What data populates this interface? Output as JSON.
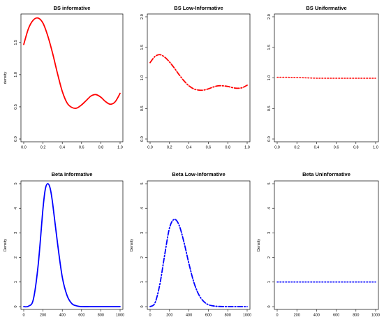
{
  "chart_data": [
    {
      "type": "line",
      "title": "BS informative",
      "xlabel": "",
      "ylabel": "density",
      "xlim": [
        0,
        1
      ],
      "ylim": [
        0,
        1.9
      ],
      "xticks": [
        "0.0",
        "0.2",
        "0.4",
        "0.6",
        "0.8",
        "1.0"
      ],
      "yticks": [
        "0.0",
        "0.5",
        "1.0",
        "1.5"
      ],
      "grid": false,
      "color": "#ff0000",
      "line_style": "solid",
      "series": [
        {
          "x": [
            0.0,
            0.05,
            0.1,
            0.15,
            0.2,
            0.25,
            0.3,
            0.35,
            0.4,
            0.45,
            0.5,
            0.55,
            0.6,
            0.65,
            0.7,
            0.75,
            0.8,
            0.85,
            0.9,
            0.95,
            1.0
          ],
          "y": [
            1.47,
            1.72,
            1.85,
            1.88,
            1.8,
            1.6,
            1.33,
            1.02,
            0.74,
            0.56,
            0.49,
            0.48,
            0.53,
            0.6,
            0.67,
            0.69,
            0.65,
            0.58,
            0.54,
            0.58,
            0.71
          ]
        }
      ]
    },
    {
      "type": "line",
      "title": "BS Low-Informative",
      "xlabel": "",
      "ylabel": "",
      "xlim": [
        0,
        1
      ],
      "ylim": [
        0,
        2.0
      ],
      "xticks": [
        "0.0",
        "0.2",
        "0.4",
        "0.6",
        "0.8",
        "1.0"
      ],
      "yticks": [
        "0.0",
        "0.5",
        "1.0",
        "1.5",
        "2.0"
      ],
      "grid": false,
      "color": "#ff0000",
      "line_style": "dashdot",
      "series": [
        {
          "x": [
            0.0,
            0.05,
            0.1,
            0.15,
            0.2,
            0.25,
            0.3,
            0.35,
            0.4,
            0.45,
            0.5,
            0.55,
            0.6,
            0.65,
            0.7,
            0.75,
            0.8,
            0.85,
            0.9,
            0.95,
            1.0
          ],
          "y": [
            1.25,
            1.35,
            1.38,
            1.34,
            1.26,
            1.16,
            1.05,
            0.95,
            0.87,
            0.82,
            0.8,
            0.8,
            0.82,
            0.85,
            0.87,
            0.87,
            0.86,
            0.84,
            0.83,
            0.84,
            0.88
          ]
        }
      ]
    },
    {
      "type": "line",
      "title": "BS Uniformative",
      "xlabel": "",
      "ylabel": "",
      "xlim": [
        0,
        1
      ],
      "ylim": [
        0,
        2.0
      ],
      "xticks": [
        "0.0",
        "0.2",
        "0.4",
        "0.6",
        "0.8",
        "1.0"
      ],
      "yticks": [
        "0.0",
        "0.5",
        "1.0",
        "1.5",
        "2.0"
      ],
      "grid": false,
      "color": "#ff0000",
      "line_style": "dotted",
      "series": [
        {
          "x": [
            0.0,
            0.1,
            0.2,
            0.3,
            0.4,
            0.5,
            0.6,
            0.7,
            0.8,
            0.9,
            1.0
          ],
          "y": [
            1.01,
            1.01,
            1.005,
            1.0,
            0.995,
            0.995,
            0.995,
            0.995,
            0.995,
            0.995,
            0.995
          ]
        }
      ]
    },
    {
      "type": "line",
      "title": "Beta Informative",
      "xlabel": "",
      "ylabel": "Density",
      "xlim": [
        0,
        1000
      ],
      "ylim": [
        0,
        5.0
      ],
      "xticks": [
        "0",
        "200",
        "400",
        "600",
        "800",
        "1000"
      ],
      "yticks": [
        "0",
        "1",
        "2",
        "3",
        "4",
        "5"
      ],
      "grid": false,
      "color": "#0000ff",
      "line_style": "solid",
      "series": [
        {
          "x": [
            0,
            50,
            100,
            150,
            200,
            225,
            250,
            275,
            300,
            350,
            400,
            450,
            500,
            550,
            600,
            700,
            800,
            900,
            1000
          ],
          "y": [
            0.0,
            0.02,
            0.3,
            1.7,
            4.0,
            4.8,
            5.0,
            4.8,
            4.2,
            2.6,
            1.2,
            0.45,
            0.12,
            0.03,
            0.0,
            0.0,
            0.0,
            0.0,
            0.0
          ]
        }
      ]
    },
    {
      "type": "line",
      "title": "Beta Low-Informative",
      "xlabel": "",
      "ylabel": "Density",
      "xlim": [
        0,
        1000
      ],
      "ylim": [
        0,
        5.0
      ],
      "xticks": [
        "0",
        "200",
        "400",
        "600",
        "800",
        "1000"
      ],
      "yticks": [
        "0",
        "1",
        "2",
        "3",
        "4",
        "5"
      ],
      "grid": false,
      "color": "#0000ff",
      "line_style": "dashdot",
      "series": [
        {
          "x": [
            0,
            50,
            100,
            150,
            200,
            250,
            300,
            350,
            400,
            450,
            500,
            550,
            600,
            650,
            700,
            800,
            900,
            1000
          ],
          "y": [
            0.0,
            0.15,
            0.9,
            2.1,
            3.2,
            3.55,
            3.3,
            2.6,
            1.75,
            1.0,
            0.5,
            0.22,
            0.08,
            0.03,
            0.01,
            0.0,
            0.0,
            0.0
          ]
        }
      ]
    },
    {
      "type": "line",
      "title": "Beta Uninformative",
      "xlabel": "",
      "ylabel": "Density",
      "xlim": [
        0,
        1000
      ],
      "ylim": [
        0,
        5.0
      ],
      "xticks": [
        "0",
        "200",
        "400",
        "600",
        "800",
        "1000"
      ],
      "yticks": [
        "0",
        "1",
        "2",
        "3",
        "4",
        "5"
      ],
      "grid": false,
      "color": "#0000ff",
      "line_style": "dotted",
      "series": [
        {
          "x": [
            0,
            1000
          ],
          "y": [
            1.0,
            1.0
          ]
        }
      ]
    }
  ]
}
